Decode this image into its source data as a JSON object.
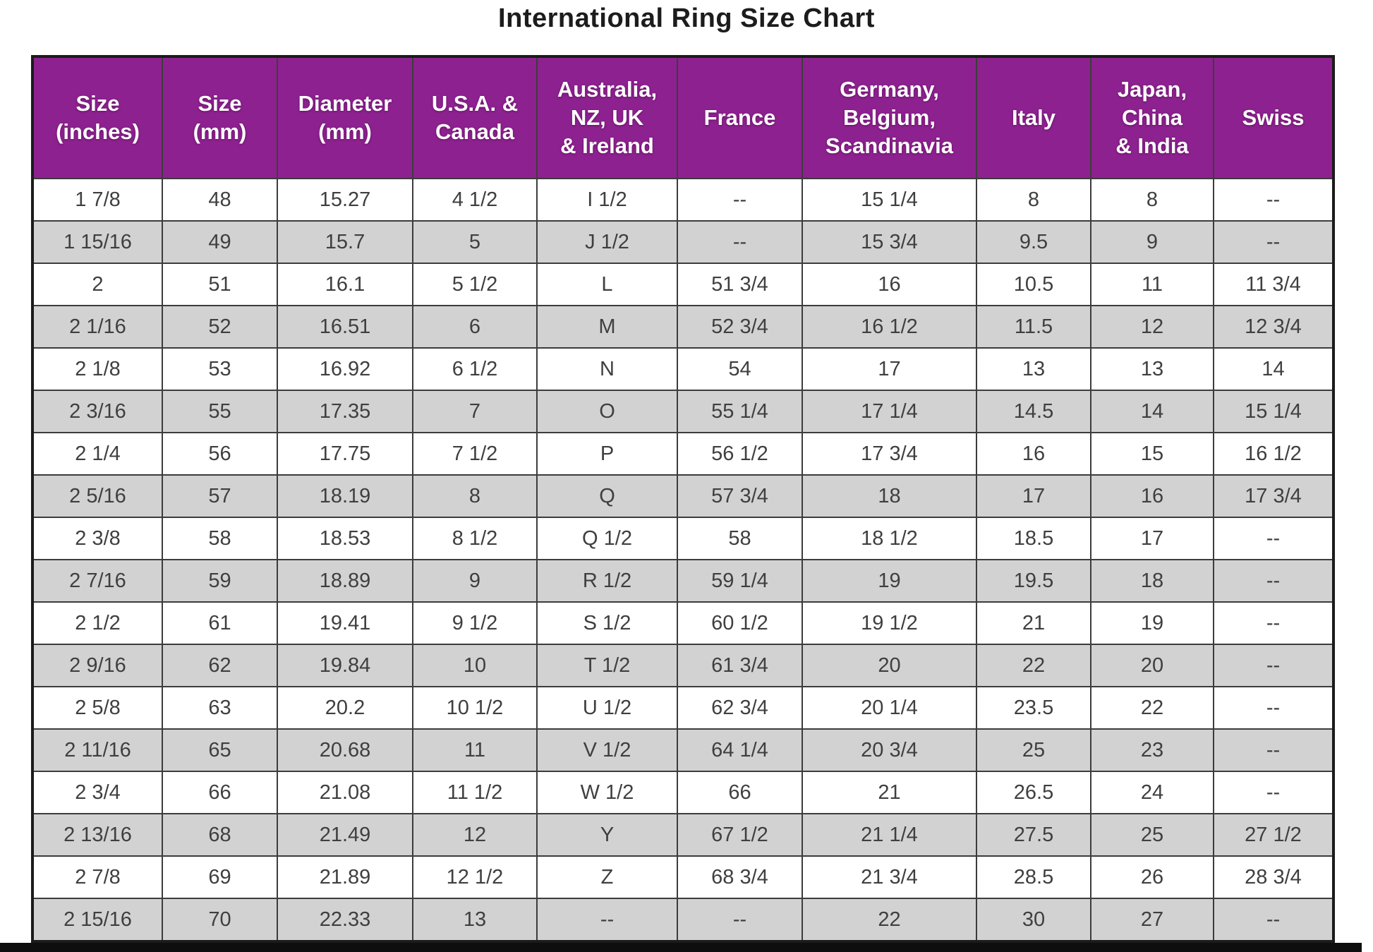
{
  "title": "International Ring Size Chart",
  "colors": {
    "header_bg": "#8e2190",
    "row_bg": "#ffffff",
    "row_alt_bg": "#d2d2d2",
    "header_text": "#ffffff",
    "body_text": "#3f3f3f"
  },
  "table": {
    "headers": [
      "Size\n(inches)",
      "Size\n(mm)",
      "Diameter\n(mm)",
      "U.S.A. &\nCanada",
      "Australia,\nNZ, UK\n& Ireland",
      "France",
      "Germany,\nBelgium,\nScandinavia",
      "Italy",
      "Japan,\nChina\n& India",
      "Swiss"
    ],
    "rows": [
      [
        "1 7/8",
        "48",
        "15.27",
        "4 1/2",
        "I 1/2",
        "--",
        "15 1/4",
        "8",
        "8",
        "--"
      ],
      [
        "1 15/16",
        "49",
        "15.7",
        "5",
        "J 1/2",
        "--",
        "15 3/4",
        "9.5",
        "9",
        "--"
      ],
      [
        "2",
        "51",
        "16.1",
        "5 1/2",
        "L",
        "51 3/4",
        "16",
        "10.5",
        "11",
        "11 3/4"
      ],
      [
        "2 1/16",
        "52",
        "16.51",
        "6",
        "M",
        "52 3/4",
        "16 1/2",
        "11.5",
        "12",
        "12 3/4"
      ],
      [
        "2 1/8",
        "53",
        "16.92",
        "6 1/2",
        "N",
        "54",
        "17",
        "13",
        "13",
        "14"
      ],
      [
        "2 3/16",
        "55",
        "17.35",
        "7",
        "O",
        "55 1/4",
        "17 1/4",
        "14.5",
        "14",
        "15 1/4"
      ],
      [
        "2 1/4",
        "56",
        "17.75",
        "7 1/2",
        "P",
        "56 1/2",
        "17 3/4",
        "16",
        "15",
        "16 1/2"
      ],
      [
        "2 5/16",
        "57",
        "18.19",
        "8",
        "Q",
        "57 3/4",
        "18",
        "17",
        "16",
        "17 3/4"
      ],
      [
        "2 3/8",
        "58",
        "18.53",
        "8 1/2",
        "Q 1/2",
        "58",
        "18 1/2",
        "18.5",
        "17",
        "--"
      ],
      [
        "2 7/16",
        "59",
        "18.89",
        "9",
        "R 1/2",
        "59 1/4",
        "19",
        "19.5",
        "18",
        "--"
      ],
      [
        "2 1/2",
        "61",
        "19.41",
        "9 1/2",
        "S 1/2",
        "60 1/2",
        "19 1/2",
        "21",
        "19",
        "--"
      ],
      [
        "2 9/16",
        "62",
        "19.84",
        "10",
        "T 1/2",
        "61 3/4",
        "20",
        "22",
        "20",
        "--"
      ],
      [
        "2 5/8",
        "63",
        "20.2",
        "10 1/2",
        "U 1/2",
        "62 3/4",
        "20 1/4",
        "23.5",
        "22",
        "--"
      ],
      [
        "2 11/16",
        "65",
        "20.68",
        "11",
        "V 1/2",
        "64 1/4",
        "20 3/4",
        "25",
        "23",
        "--"
      ],
      [
        "2 3/4",
        "66",
        "21.08",
        "11 1/2",
        "W 1/2",
        "66",
        "21",
        "26.5",
        "24",
        "--"
      ],
      [
        "2 13/16",
        "68",
        "21.49",
        "12",
        "Y",
        "67 1/2",
        "21 1/4",
        "27.5",
        "25",
        "27 1/2"
      ],
      [
        "2 7/8",
        "69",
        "21.89",
        "12 1/2",
        "Z",
        "68 3/4",
        "21 3/4",
        "28.5",
        "26",
        "28 3/4"
      ],
      [
        "2 15/16",
        "70",
        "22.33",
        "13",
        "--",
        "--",
        "22",
        "30",
        "27",
        "--"
      ]
    ]
  },
  "chart_data": {
    "type": "table",
    "title": "International Ring Size Chart",
    "columns": [
      "Size (inches)",
      "Size (mm)",
      "Diameter (mm)",
      "U.S.A. & Canada",
      "Australia, NZ, UK & Ireland",
      "France",
      "Germany, Belgium, Scandinavia",
      "Italy",
      "Japan, China & India",
      "Swiss"
    ],
    "rows": [
      [
        "1 7/8",
        "48",
        "15.27",
        "4 1/2",
        "I 1/2",
        "--",
        "15 1/4",
        "8",
        "8",
        "--"
      ],
      [
        "1 15/16",
        "49",
        "15.7",
        "5",
        "J 1/2",
        "--",
        "15 3/4",
        "9.5",
        "9",
        "--"
      ],
      [
        "2",
        "51",
        "16.1",
        "5 1/2",
        "L",
        "51 3/4",
        "16",
        "10.5",
        "11",
        "11 3/4"
      ],
      [
        "2 1/16",
        "52",
        "16.51",
        "6",
        "M",
        "52 3/4",
        "16 1/2",
        "11.5",
        "12",
        "12 3/4"
      ],
      [
        "2 1/8",
        "53",
        "16.92",
        "6 1/2",
        "N",
        "54",
        "17",
        "13",
        "13",
        "14"
      ],
      [
        "2 3/16",
        "55",
        "17.35",
        "7",
        "O",
        "55 1/4",
        "17 1/4",
        "14.5",
        "14",
        "15 1/4"
      ],
      [
        "2 1/4",
        "56",
        "17.75",
        "7 1/2",
        "P",
        "56 1/2",
        "17 3/4",
        "16",
        "15",
        "16 1/2"
      ],
      [
        "2 5/16",
        "57",
        "18.19",
        "8",
        "Q",
        "57 3/4",
        "18",
        "17",
        "16",
        "17 3/4"
      ],
      [
        "2 3/8",
        "58",
        "18.53",
        "8 1/2",
        "Q 1/2",
        "58",
        "18 1/2",
        "18.5",
        "17",
        "--"
      ],
      [
        "2 7/16",
        "59",
        "18.89",
        "9",
        "R 1/2",
        "59 1/4",
        "19",
        "19.5",
        "18",
        "--"
      ],
      [
        "2 1/2",
        "61",
        "19.41",
        "9 1/2",
        "S 1/2",
        "60 1/2",
        "19 1/2",
        "21",
        "19",
        "--"
      ],
      [
        "2 9/16",
        "62",
        "19.84",
        "10",
        "T 1/2",
        "61 3/4",
        "20",
        "22",
        "20",
        "--"
      ],
      [
        "2 5/8",
        "63",
        "20.2",
        "10 1/2",
        "U 1/2",
        "62 3/4",
        "20 1/4",
        "23.5",
        "22",
        "--"
      ],
      [
        "2 11/16",
        "65",
        "20.68",
        "11",
        "V 1/2",
        "64 1/4",
        "20 3/4",
        "25",
        "23",
        "--"
      ],
      [
        "2 3/4",
        "66",
        "21.08",
        "11 1/2",
        "W 1/2",
        "66",
        "21",
        "26.5",
        "24",
        "--"
      ],
      [
        "2 13/16",
        "68",
        "21.49",
        "12",
        "Y",
        "67 1/2",
        "21 1/4",
        "27.5",
        "25",
        "27 1/2"
      ],
      [
        "2 7/8",
        "69",
        "21.89",
        "12 1/2",
        "Z",
        "68 3/4",
        "21 3/4",
        "28.5",
        "26",
        "28 3/4"
      ],
      [
        "2 15/16",
        "70",
        "22.33",
        "13",
        "--",
        "--",
        "22",
        "30",
        "27",
        "--"
      ]
    ]
  }
}
